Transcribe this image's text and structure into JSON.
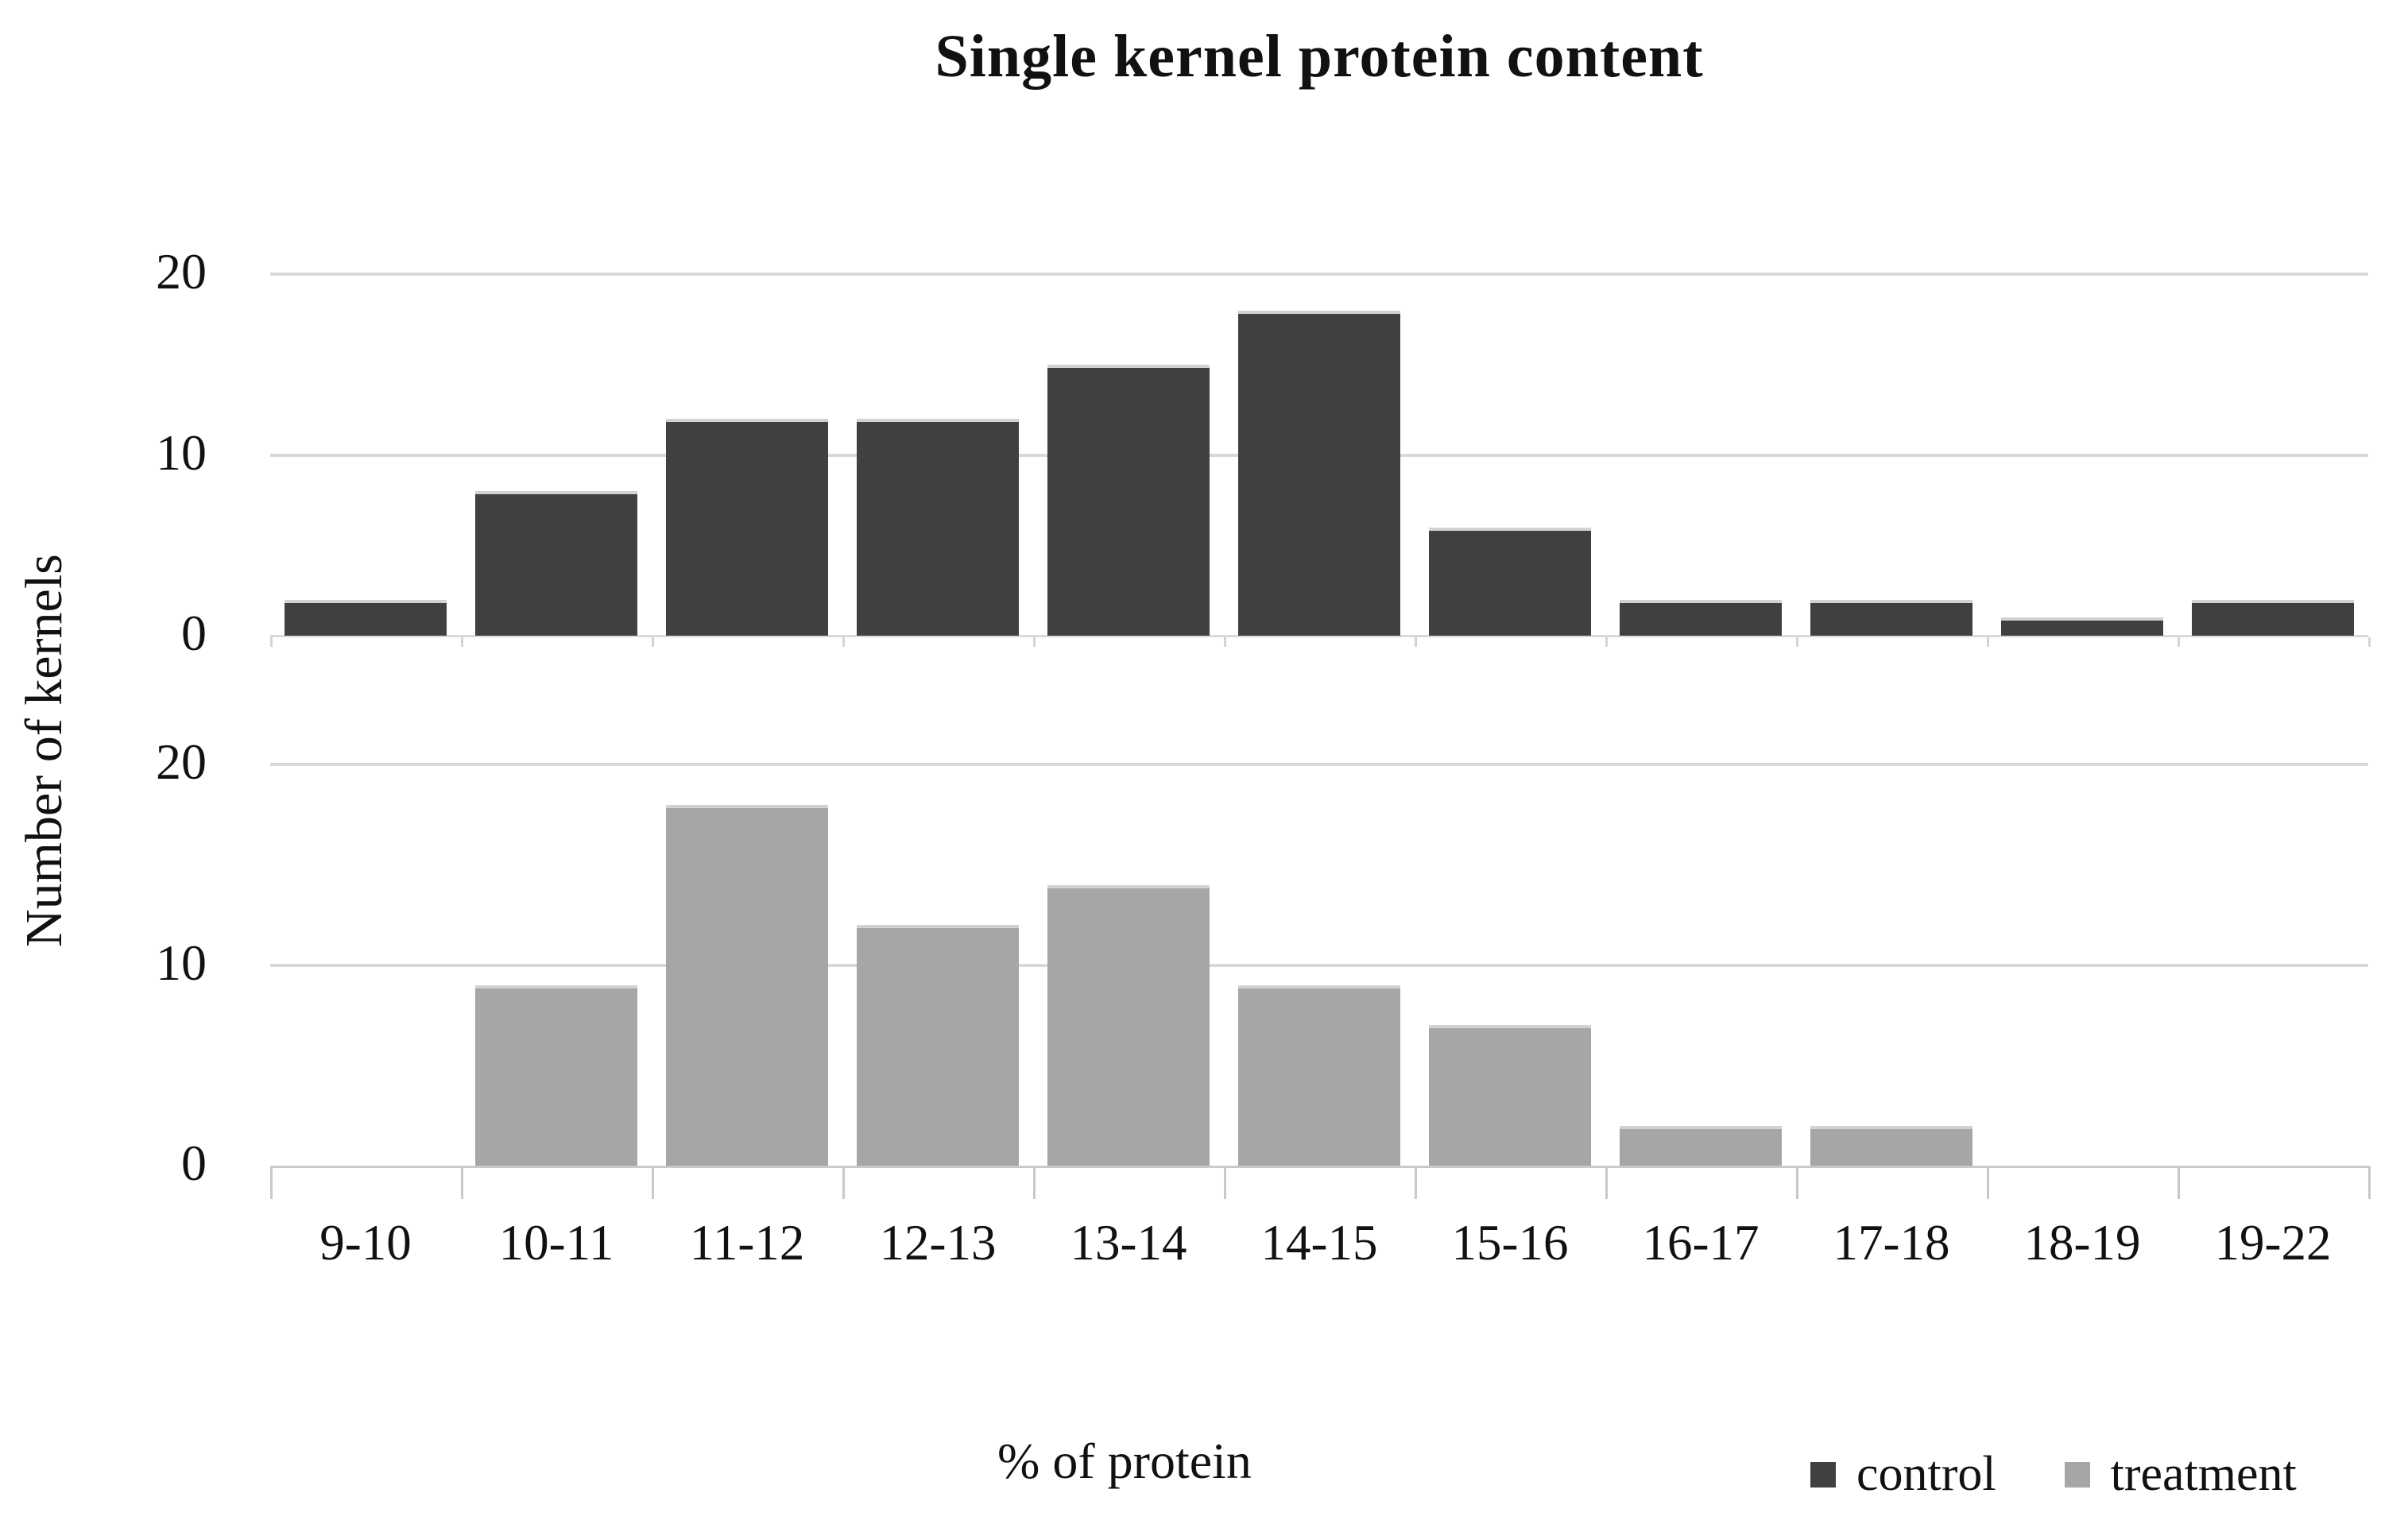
{
  "title": "Single kernel protein content",
  "y_axis_title": "Number of kernels",
  "x_axis_title": "% of protein",
  "legend": {
    "items": [
      {
        "label": "control",
        "color": "#404040"
      },
      {
        "label": "treatment",
        "color": "#a6a6a6"
      }
    ]
  },
  "colors": {
    "control_bar": "#404040",
    "treatment_bar": "#a6a6a6",
    "gridline": "#d9d9d9",
    "axis_line": "#c9c9c9",
    "text": "#111111"
  },
  "chart_data": {
    "type": "bar",
    "layout": "two vertically stacked panels, one per series, shared x categories",
    "categories": [
      "9-10",
      "10-11",
      "11-12",
      "12-13",
      "13-14",
      "14-15",
      "15-16",
      "16-17",
      "17-18",
      "18-19",
      "19-22"
    ],
    "series": [
      {
        "name": "control",
        "panel": "top",
        "color": "#404040",
        "values": [
          2,
          8,
          12,
          12,
          15,
          18,
          6,
          2,
          2,
          1,
          2
        ]
      },
      {
        "name": "treatment",
        "panel": "bottom",
        "color": "#a6a6a6",
        "values": [
          0,
          9,
          18,
          12,
          14,
          9,
          7,
          2,
          2,
          0,
          0
        ]
      }
    ],
    "title": "Single kernel protein content",
    "xlabel": "% of protein",
    "ylabel": "Number of kernels",
    "ylim": [
      0,
      20
    ],
    "y_ticks_per_panel": [
      20,
      10,
      0
    ],
    "gridlines_at": [
      10,
      20
    ],
    "grid": true,
    "legend_position": "bottom-right"
  }
}
